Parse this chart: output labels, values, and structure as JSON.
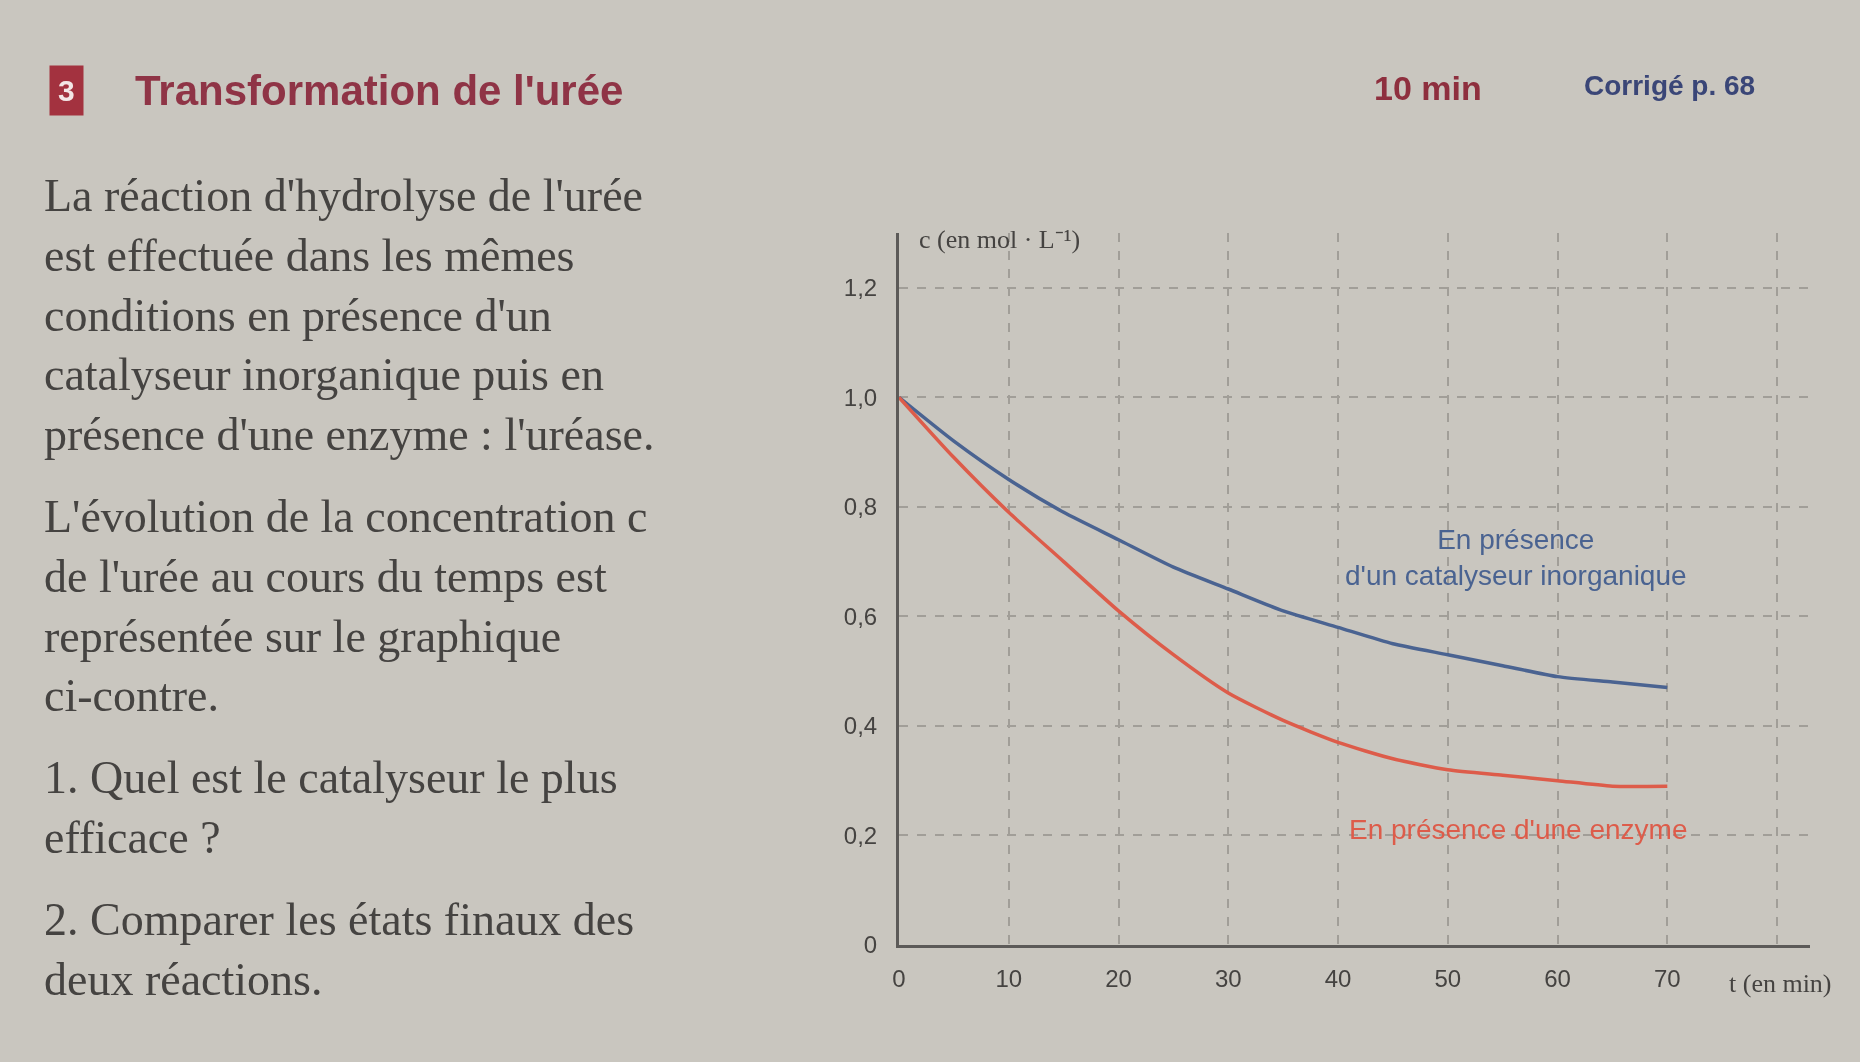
{
  "chart_data": {
    "type": "line",
    "title": "Transformation de l'urée",
    "ylabel": "c (en mol · L⁻¹)",
    "xlabel": "t (en min)",
    "annotations": [
      "3",
      "10 min",
      "Corrigé p. 68",
      "La réaction d'hydrolyse de l'urée est effectuée dans les mêmes conditions en présence d'un catalyseur inorganique puis en présence d'une enzyme : l'uréase.",
      "L'évolution de la concentration c de l'urée au cours du temps est représentée sur le graphique ci-contre.",
      "1. Quel est le catalyseur le plus efficace ?",
      "2. Comparer les états finaux des deux réactions."
    ],
    "x": [
      0,
      5,
      10,
      15,
      20,
      25,
      30,
      35,
      40,
      45,
      50,
      55,
      60,
      65,
      70
    ],
    "series": [
      {
        "name": "En présence d'un catalyseur inorganique",
        "color": "#4a6391",
        "values": [
          1.0,
          0.92,
          0.85,
          0.79,
          0.74,
          0.69,
          0.65,
          0.61,
          0.58,
          0.55,
          0.53,
          0.51,
          0.49,
          0.48,
          0.47
        ]
      },
      {
        "name": "En présence d'une enzyme",
        "color": "#dd5c4a",
        "values": [
          1.0,
          0.89,
          0.79,
          0.7,
          0.61,
          0.53,
          0.46,
          0.41,
          0.37,
          0.34,
          0.32,
          0.31,
          0.3,
          0.29,
          0.29
        ]
      }
    ],
    "xlim": [
      0,
      83
    ],
    "xticks": [
      0,
      10,
      20,
      30,
      40,
      50,
      60,
      70,
      {
        "value": 80,
        "label": null
      }
    ],
    "ylim": [
      0,
      1.3
    ],
    "yticks": [
      0,
      {
        "value": 0.2,
        "label": "0,2"
      },
      {
        "value": 0.4,
        "label": "0,4"
      },
      {
        "value": 0.6,
        "label": "0,6"
      },
      {
        "value": 0.8,
        "label": "0,8"
      },
      {
        "value": 1.0,
        "label": "1,0"
      },
      {
        "value": 1.2,
        "label": "1,2"
      }
    ],
    "grid": true,
    "line_style": "solid"
  }
}
